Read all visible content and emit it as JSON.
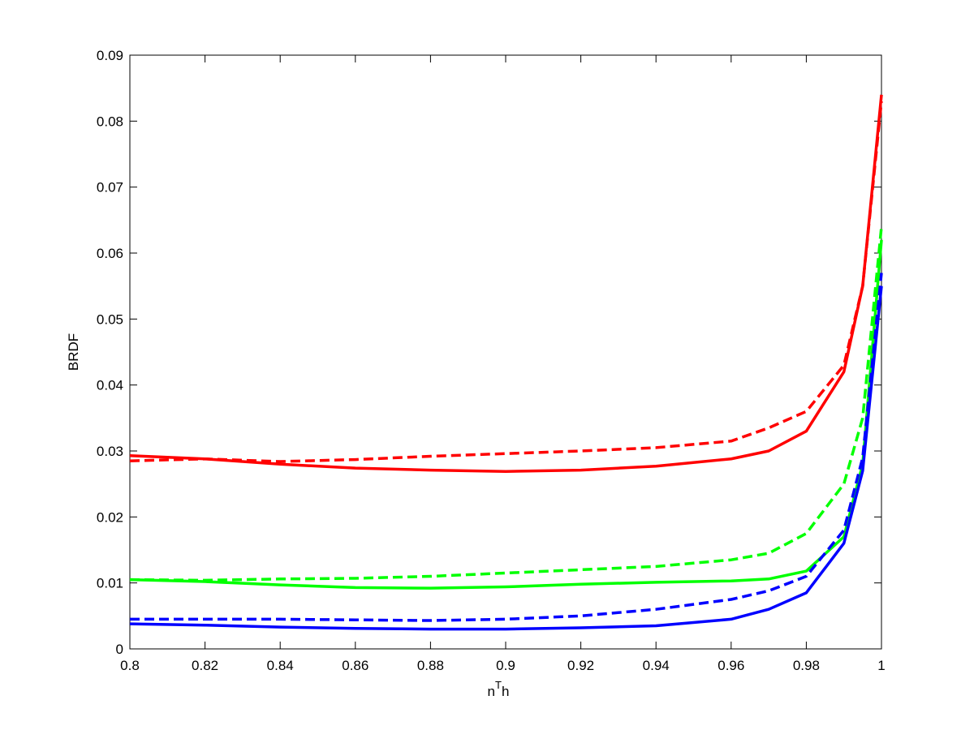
{
  "chart_data": {
    "type": "line",
    "ylabel": "BRDF",
    "xlabel": [
      "n",
      "T",
      "h"
    ],
    "x": [
      0.8,
      0.82,
      0.84,
      0.86,
      0.88,
      0.9,
      0.92,
      0.94,
      0.96,
      0.97,
      0.98,
      0.99,
      0.995,
      1.0
    ],
    "series": [
      {
        "color": "#ff0000",
        "style": "solid",
        "values": [
          0.0293,
          0.0288,
          0.028,
          0.0274,
          0.0271,
          0.0269,
          0.0271,
          0.0277,
          0.0288,
          0.03,
          0.033,
          0.042,
          0.055,
          0.084
        ]
      },
      {
        "color": "#ff0000",
        "style": "dashed",
        "values": [
          0.0285,
          0.0288,
          0.0284,
          0.0287,
          0.0292,
          0.0296,
          0.03,
          0.0305,
          0.0315,
          0.0335,
          0.036,
          0.043,
          0.055,
          0.083
        ]
      },
      {
        "color": "#00ff00",
        "style": "solid",
        "values": [
          0.0105,
          0.0102,
          0.0097,
          0.0093,
          0.0092,
          0.0094,
          0.0098,
          0.0101,
          0.0103,
          0.0106,
          0.0118,
          0.017,
          0.028,
          0.062
        ]
      },
      {
        "color": "#00ff00",
        "style": "dashed",
        "values": [
          0.0105,
          0.0104,
          0.0106,
          0.0107,
          0.011,
          0.0115,
          0.012,
          0.0125,
          0.0135,
          0.0145,
          0.0175,
          0.025,
          0.035,
          0.064
        ]
      },
      {
        "color": "#0000ff",
        "style": "solid",
        "values": [
          0.0038,
          0.0036,
          0.0033,
          0.0031,
          0.003,
          0.003,
          0.0032,
          0.0035,
          0.0045,
          0.006,
          0.0085,
          0.016,
          0.027,
          0.055
        ]
      },
      {
        "color": "#0000ff",
        "style": "dashed",
        "values": [
          0.0045,
          0.0045,
          0.0045,
          0.0044,
          0.0043,
          0.0045,
          0.005,
          0.006,
          0.0075,
          0.0088,
          0.011,
          0.018,
          0.029,
          0.057
        ]
      }
    ],
    "xlim": [
      0.8,
      1
    ],
    "ylim": [
      0,
      0.09
    ],
    "xticks": [
      0.8,
      0.82,
      0.84,
      0.86,
      0.88,
      0.9,
      0.92,
      0.94,
      0.96,
      0.98,
      1
    ],
    "yticks": [
      0,
      0.01,
      0.02,
      0.03,
      0.04,
      0.05,
      0.06,
      0.07,
      0.08,
      0.09
    ],
    "grid": false
  }
}
